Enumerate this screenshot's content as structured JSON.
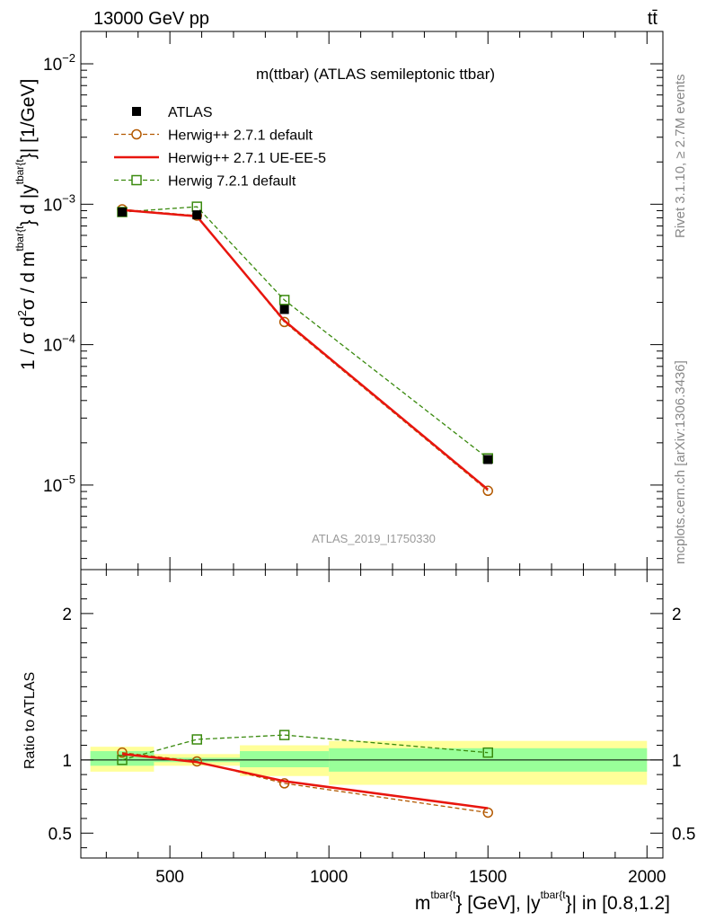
{
  "header": {
    "left": "13000 GeV pp",
    "right": "tt̄"
  },
  "side": {
    "rivet": "Rivet 3.1.10, ≥ 2.7M events",
    "mcplots": "mcplots.cern.ch [arXiv:1306.3436]"
  },
  "chart_data": [
    {
      "type": "line",
      "title": "m(ttbar) (ATLAS semileptonic ttbar)",
      "watermark": "ATLAS_2019_I1750330",
      "ylabel_parts": {
        "pre": "1 / σ d",
        "sup_sigma": "2",
        "mid": "σ / d m",
        "sup_m": "tbar{t",
        "mid2": "} d |y",
        "sup_y": "tbar{t",
        "post": "}| [1/GeV]"
      },
      "yscale": "log",
      "ylim": [
        2.5e-06,
        0.017
      ],
      "xlim": [
        220,
        2050
      ],
      "y_major_ticks": [
        1e-05,
        0.0001,
        0.001,
        0.01
      ],
      "y_tick_labels": [
        {
          "base": "10",
          "exp": "−5"
        },
        {
          "base": "10",
          "exp": "−4"
        },
        {
          "base": "10",
          "exp": "−3"
        },
        {
          "base": "10",
          "exp": "−2"
        }
      ],
      "legend_position": "top-left",
      "series": [
        {
          "name": "ATLAS",
          "style": "data",
          "color": "#000000",
          "x": [
            350,
            585,
            860,
            1500
          ],
          "y": [
            0.00088,
            0.00084,
            0.000178,
            1.52e-05
          ]
        },
        {
          "name": "Herwig++ 2.7.1 default",
          "style": "dashed-circle",
          "color": "#b35900",
          "x": [
            350,
            585,
            860,
            1500
          ],
          "y": [
            0.00092,
            0.00083,
            0.000145,
            9.1e-06
          ]
        },
        {
          "name": "Herwig++ 2.7.1 UE-EE-5",
          "style": "solid",
          "color": "#e8150e",
          "x": [
            350,
            585,
            860,
            1500
          ],
          "y": [
            0.00091,
            0.00082,
            0.000148,
            9.3e-06
          ]
        },
        {
          "name": "Herwig 7.2.1 default",
          "style": "dashed-square",
          "color": "#3a8a0e",
          "x": [
            350,
            585,
            860,
            1500
          ],
          "y": [
            0.00088,
            0.00096,
            0.000208,
            1.55e-05
          ]
        }
      ]
    },
    {
      "type": "line",
      "ylabel": "Ratio to ATLAS",
      "xlabel_parts": {
        "pre": "m",
        "sup1": "tbar{t",
        "mid": "} [GeV], |y",
        "sup2": "tbar{t",
        "post": "}| in [0.8,1.2]"
      },
      "yscale": "linear",
      "ylim": [
        0.33,
        2.3
      ],
      "xlim": [
        220,
        2050
      ],
      "x_ticks": [
        500,
        1000,
        1500,
        2000
      ],
      "x_tick_labels": [
        "500",
        "1000",
        "1500",
        "2000"
      ],
      "y_ticks": [
        0.5,
        1,
        2
      ],
      "y_tick_labels": [
        "0.5",
        "1",
        "2"
      ],
      "bands": [
        {
          "x0": 250,
          "x1": 450,
          "stat": [
            0.96,
            1.06
          ],
          "tot": [
            0.92,
            1.09
          ]
        },
        {
          "x0": 450,
          "x1": 720,
          "stat": [
            0.985,
            1.015
          ],
          "tot": [
            0.96,
            1.04
          ]
        },
        {
          "x0": 720,
          "x1": 1000,
          "stat": [
            0.95,
            1.06
          ],
          "tot": [
            0.89,
            1.1
          ]
        },
        {
          "x0": 1000,
          "x1": 2000,
          "stat": [
            0.92,
            1.08
          ],
          "tot": [
            0.83,
            1.13
          ]
        }
      ],
      "series": [
        {
          "name": "Herwig++ 2.7.1 default",
          "style": "dashed-circle",
          "color": "#b35900",
          "x": [
            350,
            585,
            860,
            1500
          ],
          "y": [
            1.05,
            0.99,
            0.84,
            0.64
          ]
        },
        {
          "name": "Herwig++ 2.7.1 UE-EE-5",
          "style": "solid",
          "color": "#e8150e",
          "x": [
            350,
            585,
            860,
            1500
          ],
          "y": [
            1.04,
            0.985,
            0.855,
            0.67
          ]
        },
        {
          "name": "Herwig 7.2.1 default",
          "style": "dashed-square",
          "color": "#3a8a0e",
          "x": [
            350,
            585,
            860,
            1500
          ],
          "y": [
            1.0,
            1.14,
            1.17,
            1.05
          ]
        }
      ]
    }
  ]
}
